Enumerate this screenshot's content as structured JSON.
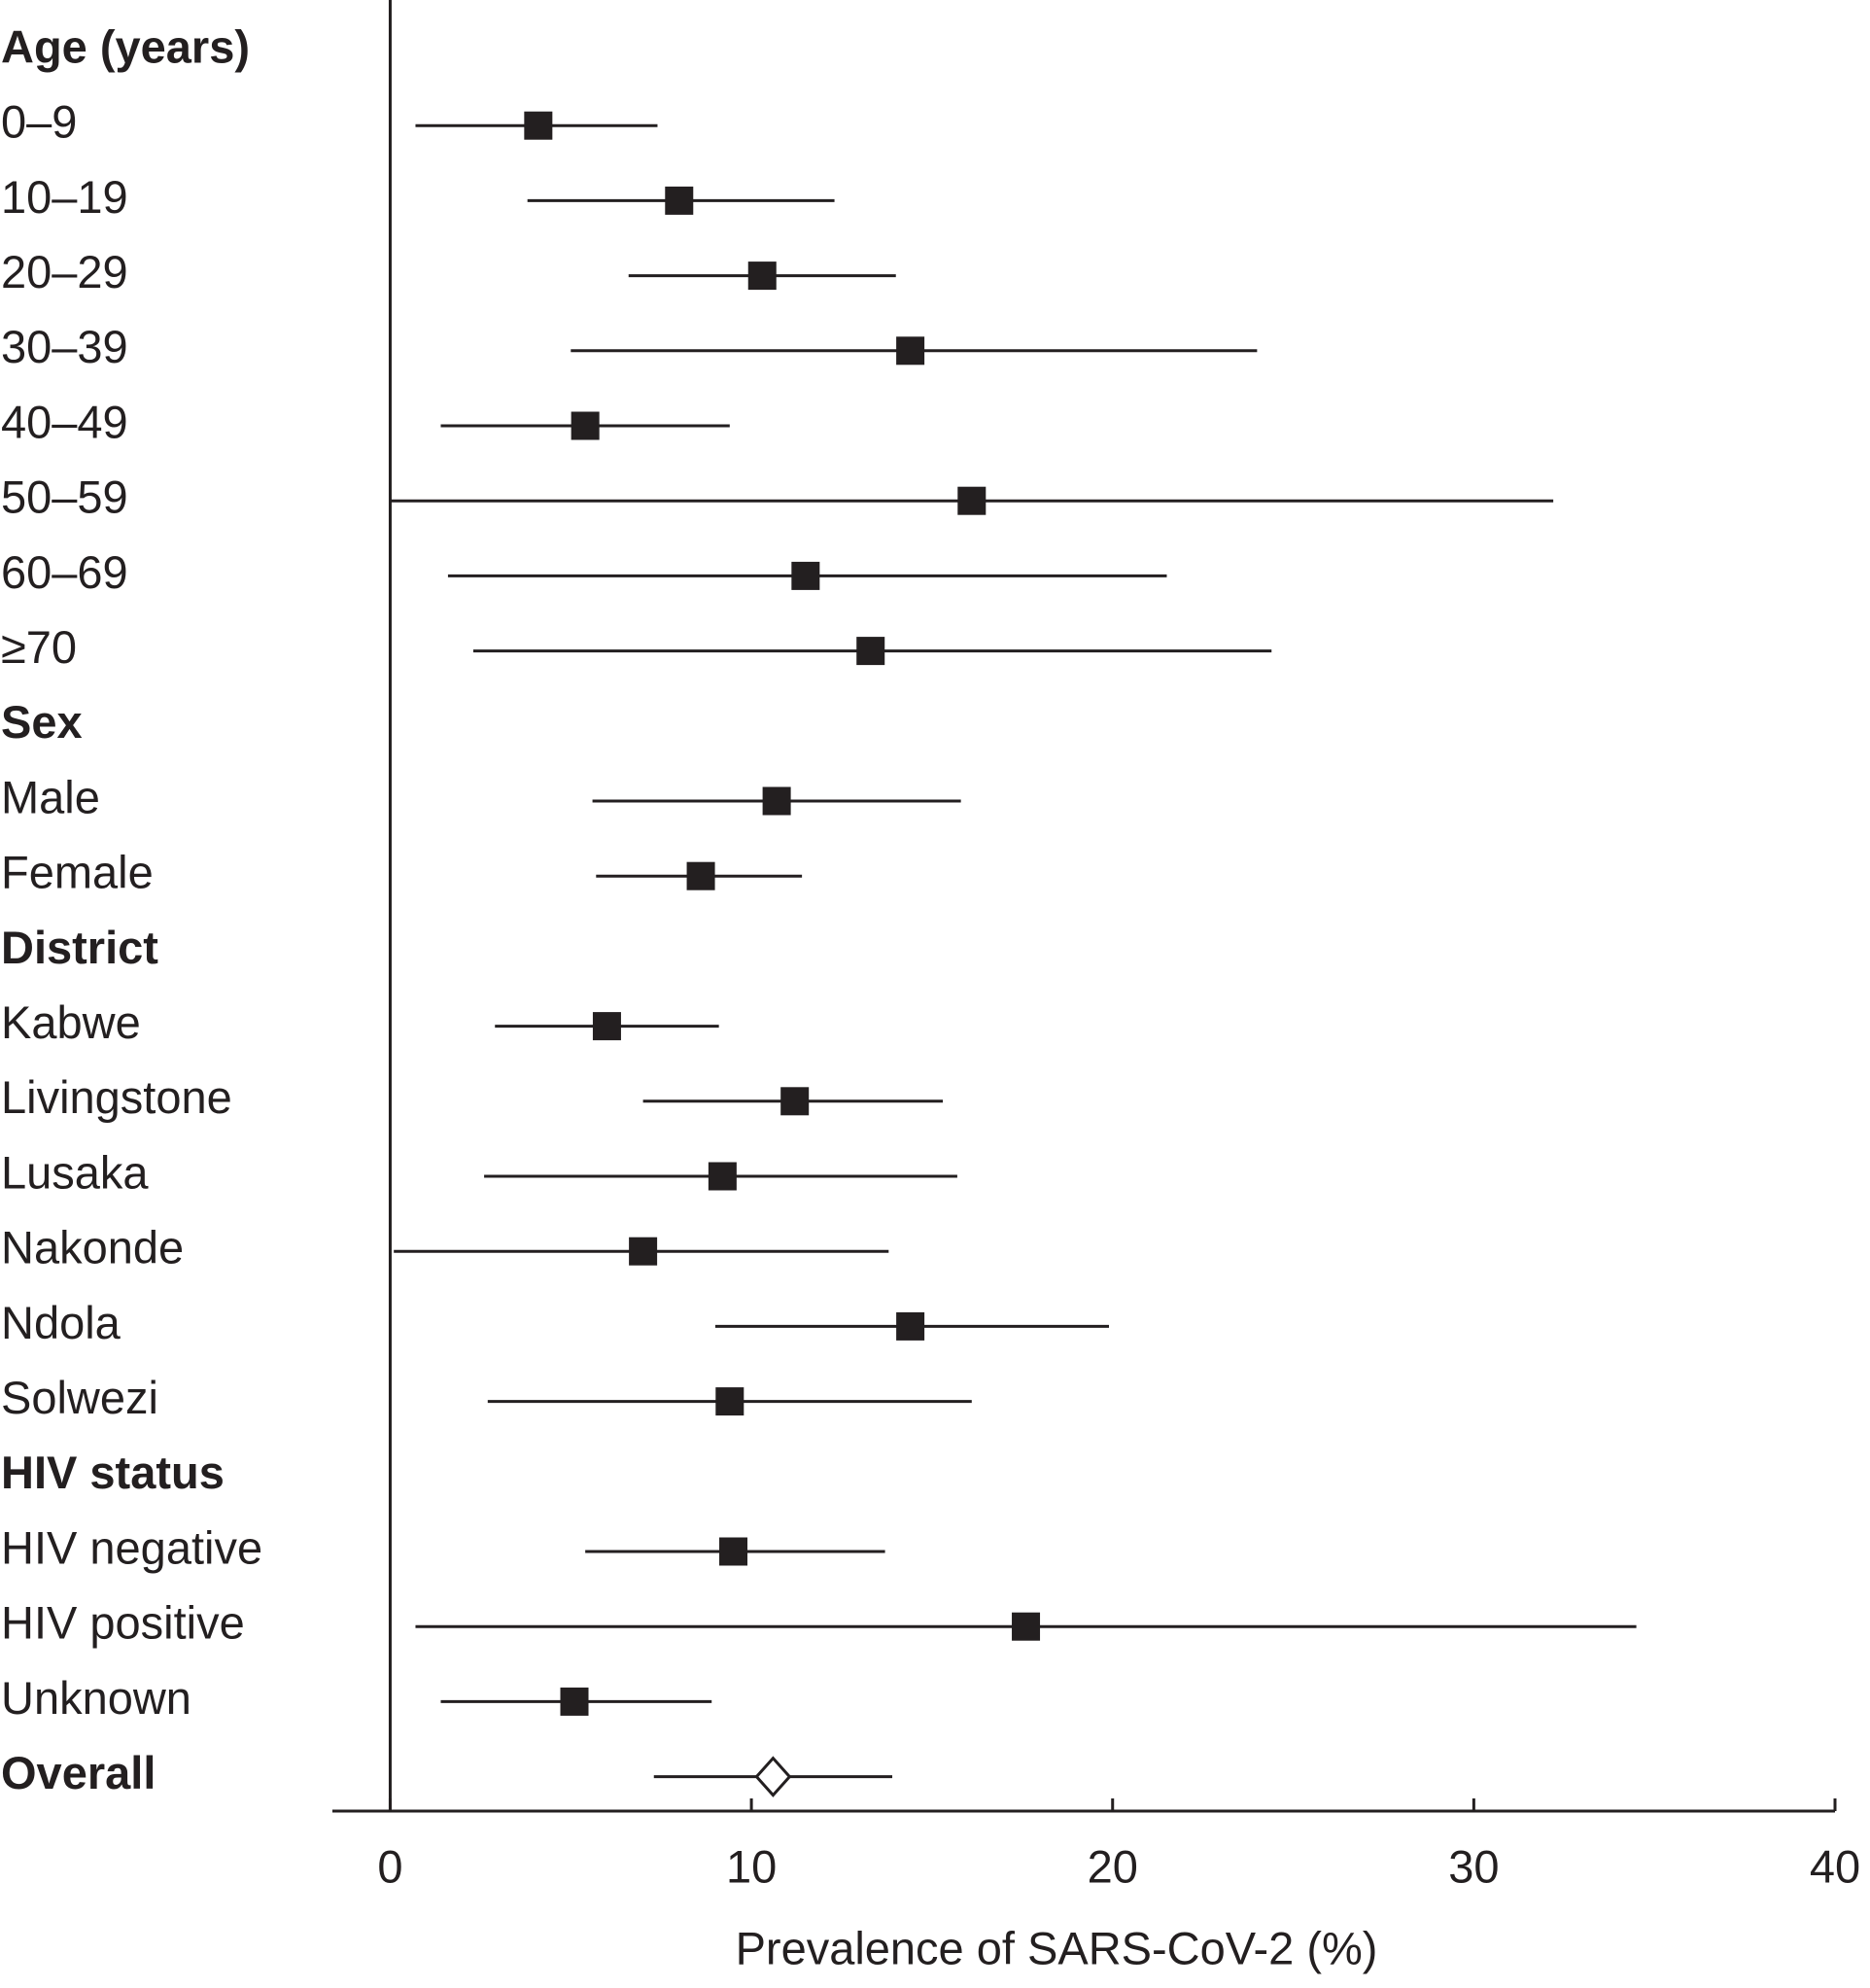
{
  "chart_data": {
    "type": "forest",
    "xlabel": "Prevalence of SARS-CoV-2 (%)",
    "xlim": [
      -1.6,
      40
    ],
    "xticks": [
      0,
      10,
      20,
      30,
      40
    ],
    "marker_color": "#231f20",
    "groups": [
      {
        "name": "Age (years)",
        "rows": [
          {
            "label": "0–9",
            "estimate": 4.1,
            "lower": 0.7,
            "upper": 7.4
          },
          {
            "label": "10–19",
            "estimate": 8.0,
            "lower": 3.8,
            "upper": 12.3
          },
          {
            "label": "20–29",
            "estimate": 10.3,
            "lower": 6.6,
            "upper": 14.0
          },
          {
            "label": "30–39",
            "estimate": 14.4,
            "lower": 5.0,
            "upper": 24.0
          },
          {
            "label": "40–49",
            "estimate": 5.4,
            "lower": 1.4,
            "upper": 9.4
          },
          {
            "label": "50–59",
            "estimate": 16.1,
            "lower": 0.0,
            "upper": 32.2
          },
          {
            "label": "60–69",
            "estimate": 11.5,
            "lower": 1.6,
            "upper": 21.5
          },
          {
            "label": "≥70",
            "estimate": 13.3,
            "lower": 2.3,
            "upper": 24.4
          }
        ]
      },
      {
        "name": "Sex",
        "rows": [
          {
            "label": "Male",
            "estimate": 10.7,
            "lower": 5.6,
            "upper": 15.8
          },
          {
            "label": "Female",
            "estimate": 8.6,
            "lower": 5.7,
            "upper": 11.4
          }
        ]
      },
      {
        "name": "District",
        "rows": [
          {
            "label": "Kabwe",
            "estimate": 6.0,
            "lower": 2.9,
            "upper": 9.1
          },
          {
            "label": "Livingstone",
            "estimate": 11.2,
            "lower": 7.0,
            "upper": 15.3
          },
          {
            "label": "Lusaka",
            "estimate": 9.2,
            "lower": 2.6,
            "upper": 15.7
          },
          {
            "label": "Nakonde",
            "estimate": 7.0,
            "lower": 0.1,
            "upper": 13.8
          },
          {
            "label": "Ndola",
            "estimate": 14.4,
            "lower": 9.0,
            "upper": 19.9
          },
          {
            "label": "Solwezi",
            "estimate": 9.4,
            "lower": 2.7,
            "upper": 16.1
          }
        ]
      },
      {
        "name": "HIV status",
        "rows": [
          {
            "label": "HIV negative",
            "estimate": 9.5,
            "lower": 5.4,
            "upper": 13.7
          },
          {
            "label": "HIV positive",
            "estimate": 17.6,
            "lower": 0.7,
            "upper": 34.5
          },
          {
            "label": "Unknown",
            "estimate": 5.1,
            "lower": 1.4,
            "upper": 8.9
          }
        ]
      }
    ],
    "overall": {
      "label": "Overall",
      "estimate": 10.6,
      "lower": 7.3,
      "upper": 13.9
    }
  }
}
